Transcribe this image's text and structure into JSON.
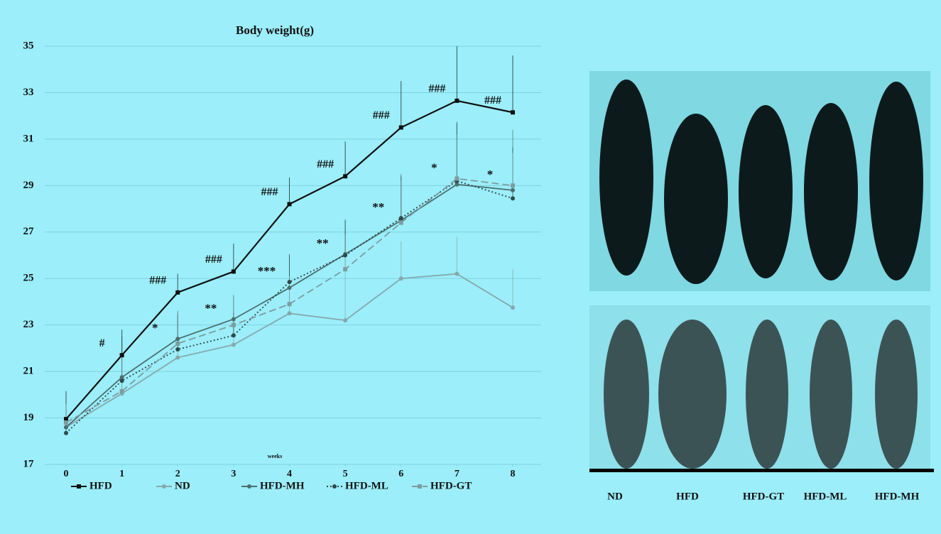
{
  "chart_data": {
    "type": "line",
    "title": "Body weight(g)",
    "x_label": "weeks",
    "x": [
      0,
      1,
      2,
      3,
      4,
      5,
      6,
      7,
      8
    ],
    "xlim": [
      0,
      8
    ],
    "xticks": [
      0,
      1,
      2,
      3,
      4,
      5,
      6,
      7,
      8
    ],
    "ylim": [
      17,
      35
    ],
    "yticks": [
      17,
      19,
      21,
      23,
      25,
      27,
      29,
      31,
      33,
      35
    ],
    "grid": true,
    "series": [
      {
        "name": "HFD",
        "color": "#111111",
        "dash": "solid",
        "marker": "square",
        "values": [
          18.95,
          21.7,
          24.4,
          25.3,
          28.2,
          29.4,
          31.5,
          32.65,
          32.15
        ],
        "errors": [
          1.2,
          1.1,
          0.8,
          1.2,
          1.15,
          1.5,
          2.0,
          2.35,
          2.45
        ]
      },
      {
        "name": "ND",
        "color": "#86a8ac",
        "dash": "solid",
        "marker": "circle",
        "values": [
          18.6,
          20.05,
          21.6,
          22.15,
          23.5,
          23.2,
          25.0,
          25.2,
          23.75
        ],
        "errors": [
          0.9,
          0.75,
          1.9,
          2.15,
          2.1,
          3.8,
          1.6,
          1.6,
          1.65
        ]
      },
      {
        "name": "HFD-MH",
        "color": "#4d6f6e",
        "dash": "solid",
        "marker": "circle",
        "values": [
          18.6,
          20.75,
          22.4,
          23.25,
          24.6,
          26.05,
          27.5,
          29.05,
          28.8
        ],
        "errors": [
          0.9,
          1.8,
          1.2,
          1.0,
          1.4,
          1.5,
          2.0,
          2.7,
          2.6
        ]
      },
      {
        "name": "HFD-ML",
        "color": "#2e4a4a",
        "dash": "dotted",
        "marker": "circle",
        "values": [
          18.35,
          20.6,
          21.95,
          22.55,
          24.85,
          26.0,
          27.6,
          29.2,
          28.45
        ],
        "errors": [
          1.2,
          1.9,
          1.5,
          1.0,
          1.2,
          1.5,
          1.8,
          2.5,
          2.2
        ]
      },
      {
        "name": "HFD-GT",
        "color": "#7d9da0",
        "dash": "dashed",
        "marker": "square",
        "values": [
          18.8,
          20.15,
          22.2,
          23.0,
          23.9,
          25.4,
          27.4,
          29.3,
          29.0
        ],
        "errors": [
          0.8,
          1.5,
          1.3,
          1.3,
          1.2,
          1.5,
          1.8,
          1.9,
          1.4
        ]
      }
    ],
    "annotations": {
      "hfd": [
        null,
        "#",
        "###",
        "###",
        "###",
        "###",
        "###",
        "###",
        "###"
      ],
      "treatment": [
        null,
        null,
        "*",
        "**",
        "***",
        "**",
        "**",
        "*",
        "*"
      ]
    }
  },
  "photo_labels": [
    "ND",
    "HFD",
    "HFD-GT",
    "HFD-ML",
    "HFD-MH"
  ]
}
